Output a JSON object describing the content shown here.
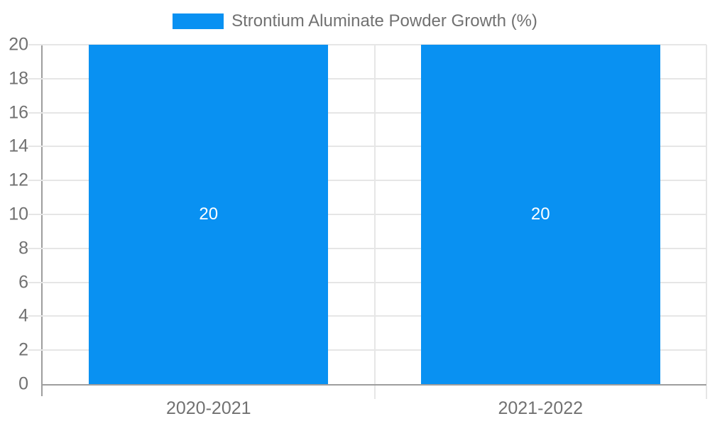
{
  "chart_data": {
    "type": "bar",
    "legend": "Strontium Aluminate Powder Growth (%)",
    "legend_position": "top-center",
    "categories": [
      "2020-2021",
      "2021-2022"
    ],
    "series": [
      {
        "name": "Strontium Aluminate Powder Growth (%)",
        "values": [
          20,
          20
        ]
      }
    ],
    "bar_value_labels": [
      "20",
      "20"
    ],
    "ylim": [
      0,
      20
    ],
    "ytick_step": 2,
    "yticks": [
      0,
      2,
      4,
      6,
      8,
      10,
      12,
      14,
      16,
      18,
      20
    ],
    "grid": true,
    "xlabel": "",
    "ylabel": "",
    "colors": {
      "bar": "#0991f2",
      "axis": "#9e9e9e",
      "grid": "#e6e6e6",
      "tick_text": "#717171",
      "bar_label_text": "#ffffff",
      "background": "#ffffff"
    }
  }
}
